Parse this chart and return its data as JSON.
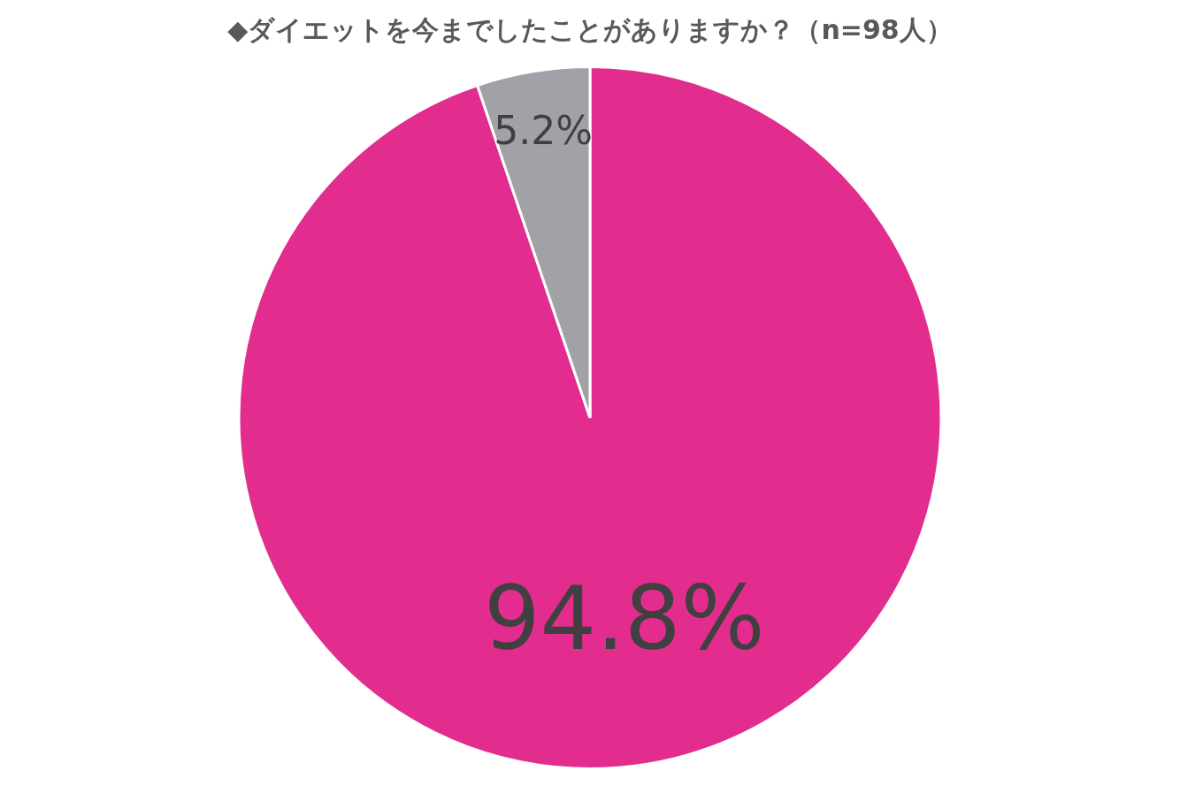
{
  "chart_data": {
    "type": "pie",
    "title": "◆ダイエットを今までしたことがありますか？（n=98人）",
    "categories": [
      null,
      null
    ],
    "values": [
      94.8,
      5.2
    ],
    "colors": [
      "#e22d8f",
      "#a0a2a8"
    ],
    "value_labels": [
      "94.8%",
      "5.2%"
    ],
    "legend": false
  }
}
